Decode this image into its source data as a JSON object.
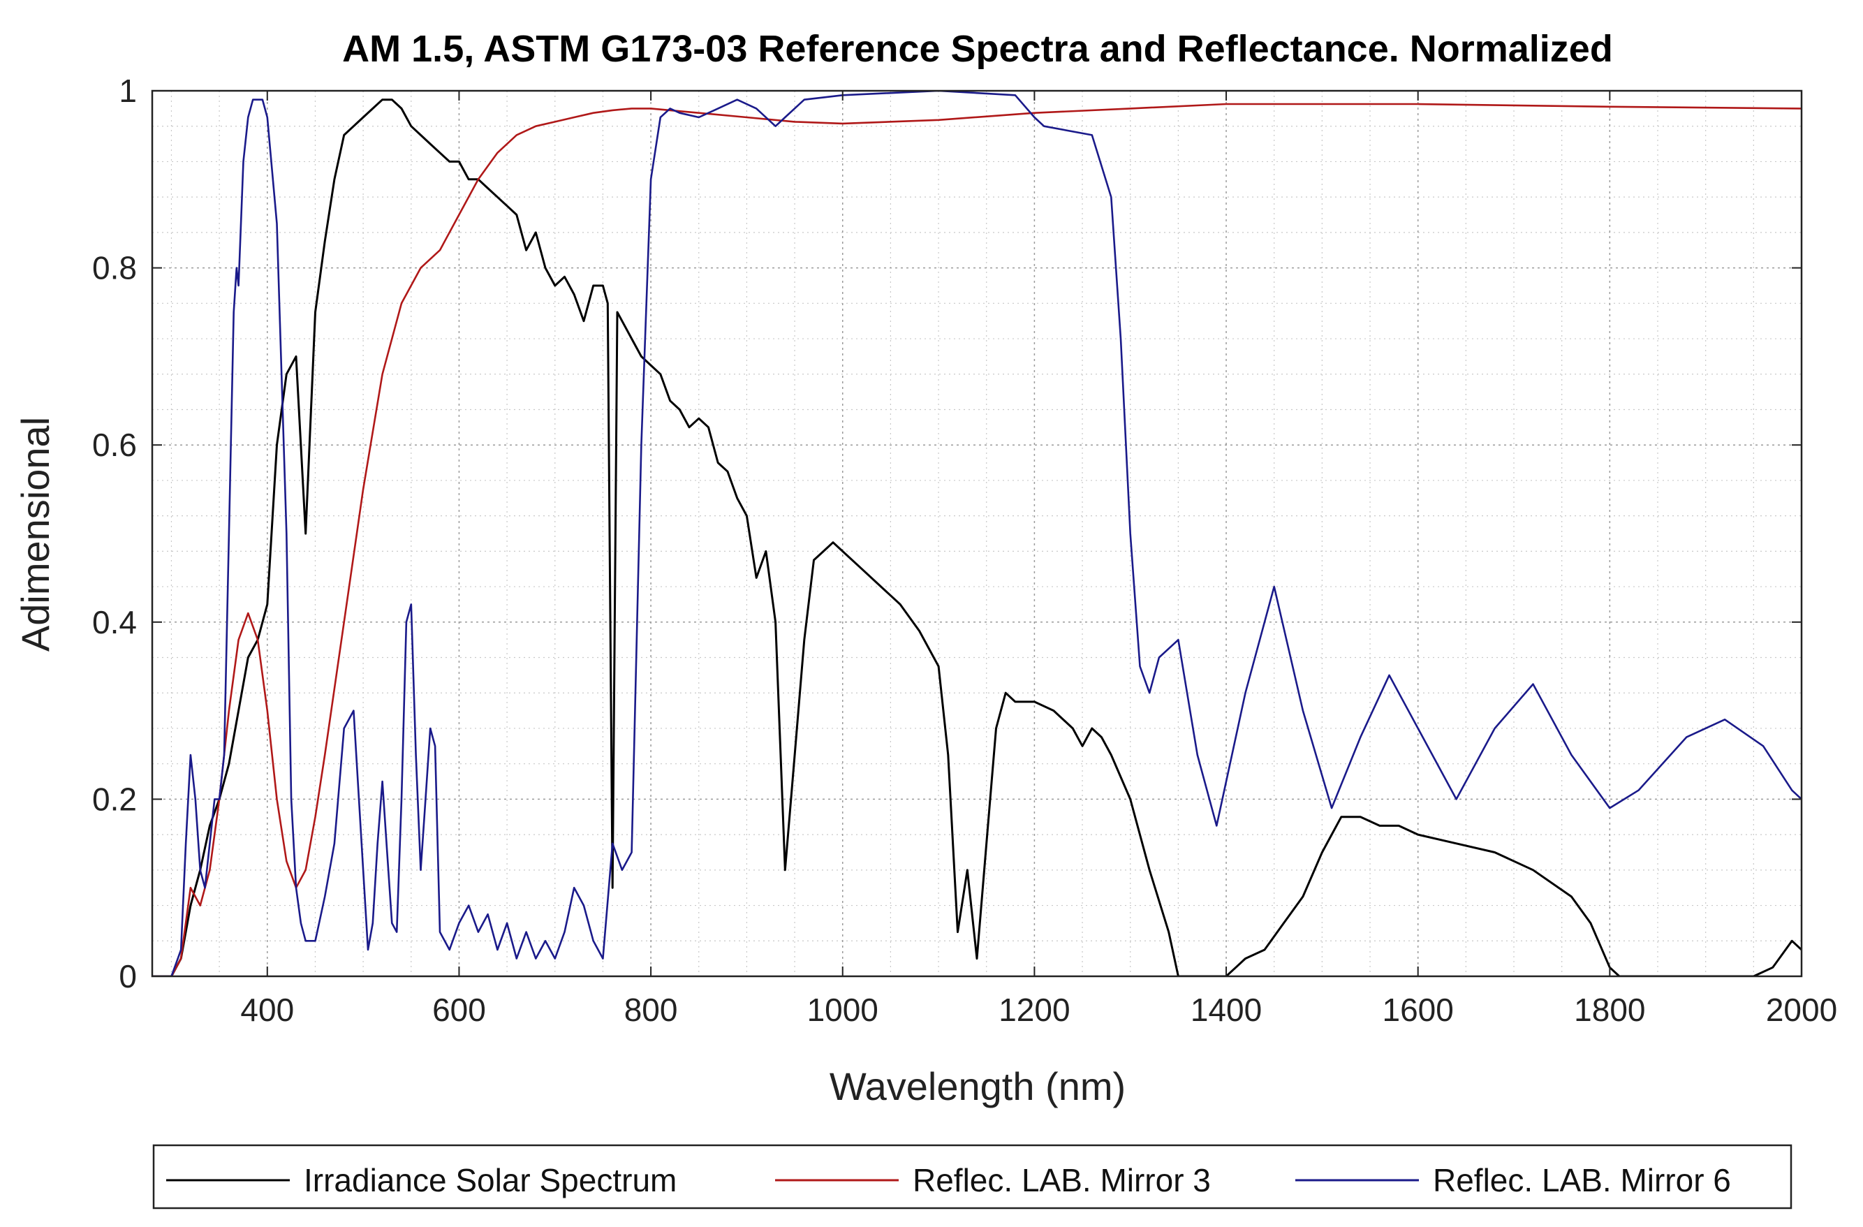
{
  "chart_data": {
    "type": "line",
    "title": "AM 1.5, ASTM G173-03 Reference Spectra and Reflectance. Normalized",
    "xlabel": "Wavelength (nm)",
    "ylabel": "Adimensional",
    "xlim": [
      280,
      2000
    ],
    "ylim": [
      0,
      1
    ],
    "xticks": [
      400,
      600,
      800,
      1000,
      1200,
      1400,
      1600,
      1800,
      2000
    ],
    "xtick_labels": [
      "400",
      "600",
      "800",
      "1000",
      "1200",
      "1400",
      "1600",
      "1800",
      "2000"
    ],
    "yticks": [
      0,
      0.2,
      0.4,
      0.6,
      0.8,
      1
    ],
    "ytick_labels": [
      "0",
      "0.2",
      "0.4",
      "0.6",
      "0.8",
      "1"
    ],
    "grid": true,
    "minor_grid": true,
    "legend_position": "bottom",
    "series": [
      {
        "name": "Irradiance Solar Spectrum",
        "color": "#000000",
        "x": [
          280,
          300,
          310,
          320,
          330,
          340,
          350,
          360,
          370,
          380,
          390,
          400,
          410,
          420,
          430,
          440,
          450,
          460,
          470,
          480,
          490,
          500,
          510,
          520,
          530,
          540,
          550,
          560,
          570,
          580,
          590,
          600,
          610,
          620,
          630,
          640,
          650,
          660,
          670,
          680,
          690,
          700,
          710,
          720,
          730,
          740,
          750,
          755,
          760,
          765,
          770,
          780,
          790,
          800,
          810,
          820,
          830,
          840,
          850,
          860,
          870,
          880,
          890,
          900,
          910,
          920,
          930,
          940,
          950,
          960,
          970,
          980,
          990,
          1000,
          1020,
          1040,
          1060,
          1080,
          1100,
          1110,
          1120,
          1130,
          1140,
          1150,
          1160,
          1170,
          1180,
          1200,
          1220,
          1240,
          1250,
          1260,
          1270,
          1280,
          1300,
          1320,
          1340,
          1350,
          1360,
          1380,
          1400,
          1410,
          1420,
          1440,
          1460,
          1480,
          1500,
          1520,
          1540,
          1560,
          1580,
          1600,
          1640,
          1680,
          1720,
          1760,
          1780,
          1800,
          1810,
          1820,
          1850,
          1900,
          1950,
          1970,
          1990,
          2000
        ],
        "values": [
          0,
          0,
          0.02,
          0.08,
          0.12,
          0.17,
          0.2,
          0.24,
          0.3,
          0.36,
          0.38,
          0.42,
          0.6,
          0.68,
          0.7,
          0.5,
          0.75,
          0.83,
          0.9,
          0.95,
          0.96,
          0.97,
          0.98,
          0.99,
          0.99,
          0.98,
          0.96,
          0.95,
          0.94,
          0.93,
          0.92,
          0.92,
          0.9,
          0.9,
          0.89,
          0.88,
          0.87,
          0.86,
          0.82,
          0.84,
          0.8,
          0.78,
          0.79,
          0.77,
          0.74,
          0.78,
          0.78,
          0.76,
          0.1,
          0.75,
          0.74,
          0.72,
          0.7,
          0.69,
          0.68,
          0.65,
          0.64,
          0.62,
          0.63,
          0.62,
          0.58,
          0.57,
          0.54,
          0.52,
          0.45,
          0.48,
          0.4,
          0.12,
          0.25,
          0.38,
          0.47,
          0.48,
          0.49,
          0.48,
          0.46,
          0.44,
          0.42,
          0.39,
          0.35,
          0.25,
          0.05,
          0.12,
          0.02,
          0.15,
          0.28,
          0.32,
          0.31,
          0.31,
          0.3,
          0.28,
          0.26,
          0.28,
          0.27,
          0.25,
          0.2,
          0.12,
          0.05,
          0,
          0,
          0,
          0,
          0.01,
          0.02,
          0.03,
          0.06,
          0.09,
          0.14,
          0.18,
          0.18,
          0.17,
          0.17,
          0.16,
          0.15,
          0.14,
          0.12,
          0.09,
          0.06,
          0.01,
          0,
          0,
          0,
          0,
          0,
          0.01,
          0.04,
          0.03
        ]
      },
      {
        "name": "Reflec. LAB. Mirror 3",
        "color": "#b01818",
        "x": [
          280,
          300,
          310,
          320,
          330,
          340,
          350,
          360,
          370,
          380,
          390,
          400,
          410,
          420,
          430,
          440,
          450,
          460,
          480,
          500,
          520,
          540,
          560,
          580,
          600,
          620,
          640,
          660,
          680,
          700,
          720,
          740,
          760,
          780,
          800,
          850,
          900,
          950,
          1000,
          1100,
          1200,
          1300,
          1400,
          1600,
          1800,
          2000
        ],
        "values": [
          0,
          0,
          0.02,
          0.1,
          0.08,
          0.12,
          0.2,
          0.3,
          0.38,
          0.41,
          0.38,
          0.3,
          0.2,
          0.13,
          0.1,
          0.12,
          0.18,
          0.25,
          0.4,
          0.55,
          0.68,
          0.76,
          0.8,
          0.82,
          0.86,
          0.9,
          0.93,
          0.95,
          0.96,
          0.965,
          0.97,
          0.975,
          0.978,
          0.98,
          0.98,
          0.975,
          0.97,
          0.965,
          0.963,
          0.967,
          0.975,
          0.98,
          0.985,
          0.985,
          0.982,
          0.98
        ]
      },
      {
        "name": "Reflec. LAB. Mirror 6",
        "color": "#1a1a8a",
        "x": [
          280,
          300,
          310,
          315,
          320,
          325,
          330,
          335,
          340,
          345,
          350,
          355,
          360,
          365,
          368,
          370,
          375,
          380,
          385,
          390,
          395,
          400,
          410,
          420,
          425,
          430,
          435,
          440,
          445,
          450,
          460,
          470,
          480,
          490,
          500,
          505,
          510,
          515,
          520,
          525,
          530,
          535,
          540,
          545,
          550,
          555,
          560,
          565,
          570,
          575,
          580,
          590,
          600,
          610,
          620,
          630,
          640,
          650,
          660,
          670,
          680,
          690,
          700,
          710,
          720,
          730,
          740,
          750,
          760,
          770,
          780,
          790,
          800,
          810,
          820,
          830,
          850,
          870,
          890,
          910,
          930,
          940,
          960,
          1000,
          1100,
          1180,
          1200,
          1210,
          1260,
          1280,
          1290,
          1300,
          1310,
          1320,
          1330,
          1350,
          1370,
          1390,
          1420,
          1450,
          1480,
          1510,
          1540,
          1570,
          1600,
          1640,
          1680,
          1720,
          1760,
          1800,
          1830,
          1880,
          1920,
          1960,
          1990,
          2000
        ],
        "values": [
          0,
          0,
          0.03,
          0.15,
          0.25,
          0.2,
          0.12,
          0.1,
          0.15,
          0.2,
          0.2,
          0.25,
          0.5,
          0.75,
          0.8,
          0.78,
          0.92,
          0.97,
          0.99,
          0.99,
          0.99,
          0.97,
          0.85,
          0.5,
          0.2,
          0.1,
          0.06,
          0.04,
          0.04,
          0.04,
          0.09,
          0.15,
          0.28,
          0.3,
          0.12,
          0.03,
          0.06,
          0.15,
          0.22,
          0.14,
          0.06,
          0.05,
          0.2,
          0.4,
          0.42,
          0.25,
          0.12,
          0.2,
          0.28,
          0.26,
          0.05,
          0.03,
          0.06,
          0.08,
          0.05,
          0.07,
          0.03,
          0.06,
          0.02,
          0.05,
          0.02,
          0.04,
          0.02,
          0.05,
          0.1,
          0.08,
          0.04,
          0.02,
          0.15,
          0.12,
          0.14,
          0.6,
          0.9,
          0.97,
          0.98,
          0.975,
          0.97,
          0.98,
          0.99,
          0.98,
          0.96,
          0.97,
          0.99,
          0.995,
          1,
          0.995,
          0.97,
          0.96,
          0.95,
          0.88,
          0.72,
          0.5,
          0.35,
          0.32,
          0.36,
          0.38,
          0.25,
          0.17,
          0.32,
          0.44,
          0.3,
          0.19,
          0.27,
          0.34,
          0.28,
          0.2,
          0.28,
          0.33,
          0.25,
          0.19,
          0.21,
          0.27,
          0.29,
          0.26,
          0.21,
          0.2
        ]
      }
    ]
  }
}
